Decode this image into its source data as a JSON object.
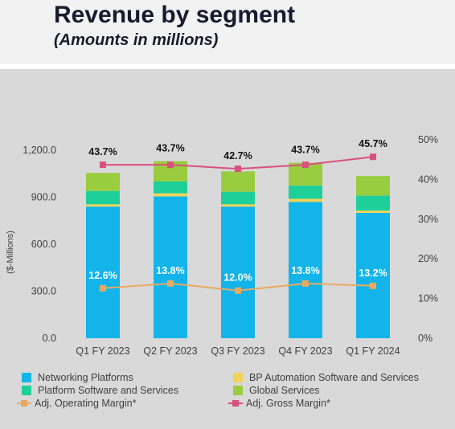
{
  "header": {
    "title": "Revenue by segment",
    "subtitle": "(Amounts in millions)"
  },
  "colors": {
    "networking": "#12b4ea",
    "bp_automation": "#f1d35a",
    "platform_software": "#1fcf9a",
    "global_services": "#99cc3f",
    "operating_margin": "#e8aa62",
    "gross_margin": "#d9507f"
  },
  "legend": [
    {
      "key": "networking",
      "label": "Networking Platforms",
      "kind": "swatch"
    },
    {
      "key": "bp_automation",
      "label": "BP Automation Software and Services",
      "kind": "swatch"
    },
    {
      "key": "platform_software",
      "label": "Platform Software and Services",
      "kind": "swatch"
    },
    {
      "key": "global_services",
      "label": "Global Services",
      "kind": "swatch"
    },
    {
      "key": "operating_margin",
      "label": "Adj. Operating Margin*",
      "kind": "line"
    },
    {
      "key": "gross_margin",
      "label": "Adj. Gross Margin*",
      "kind": "line"
    }
  ],
  "chart_data": {
    "type": "bar",
    "stacked": true,
    "categories": [
      "Q1 FY 2023",
      "Q2 FY 2023",
      "Q3 FY 2023",
      "Q4 FY 2023",
      "Q1 FY 2024"
    ],
    "ylabel": "($-Millions)",
    "ylim": [
      0,
      1300
    ],
    "yticks": [
      0,
      300,
      600,
      900,
      1200
    ],
    "ytick_labels": [
      "0.0",
      "300.0",
      "600.0",
      "900.0",
      "1,200.0"
    ],
    "y2lim": [
      0,
      50
    ],
    "y2ticks": [
      0,
      10,
      20,
      30,
      40,
      50
    ],
    "y2tick_labels": [
      "0%",
      "10%",
      "20%",
      "30%",
      "40%",
      "50%"
    ],
    "series": [
      {
        "name": "Networking Platforms",
        "color_key": "networking",
        "values": [
          840,
          905,
          840,
          870,
          800
        ]
      },
      {
        "name": "BP Automation Software and Services",
        "color_key": "bp_automation",
        "values": [
          15,
          20,
          15,
          20,
          15
        ]
      },
      {
        "name": "Platform Software and Services",
        "color_key": "platform_software",
        "values": [
          85,
          75,
          80,
          85,
          95
        ]
      },
      {
        "name": "Global Services",
        "color_key": "global_services",
        "values": [
          115,
          130,
          130,
          145,
          125
        ]
      }
    ],
    "lines": [
      {
        "name": "Adj. Operating Margin*",
        "color_key": "operating_margin",
        "axis": "right",
        "values": [
          12.6,
          13.8,
          12.0,
          13.8,
          13.2
        ],
        "labels": [
          "12.6%",
          "13.8%",
          "12.0%",
          "13.8%",
          "13.2%"
        ]
      },
      {
        "name": "Adj. Gross Margin*",
        "color_key": "gross_margin",
        "axis": "right",
        "values": [
          43.7,
          43.7,
          42.7,
          43.7,
          45.7
        ],
        "labels": [
          "43.7%",
          "43.7%",
          "42.7%",
          "43.7%",
          "45.7%"
        ]
      }
    ],
    "grid": false,
    "legend_position": "bottom"
  }
}
